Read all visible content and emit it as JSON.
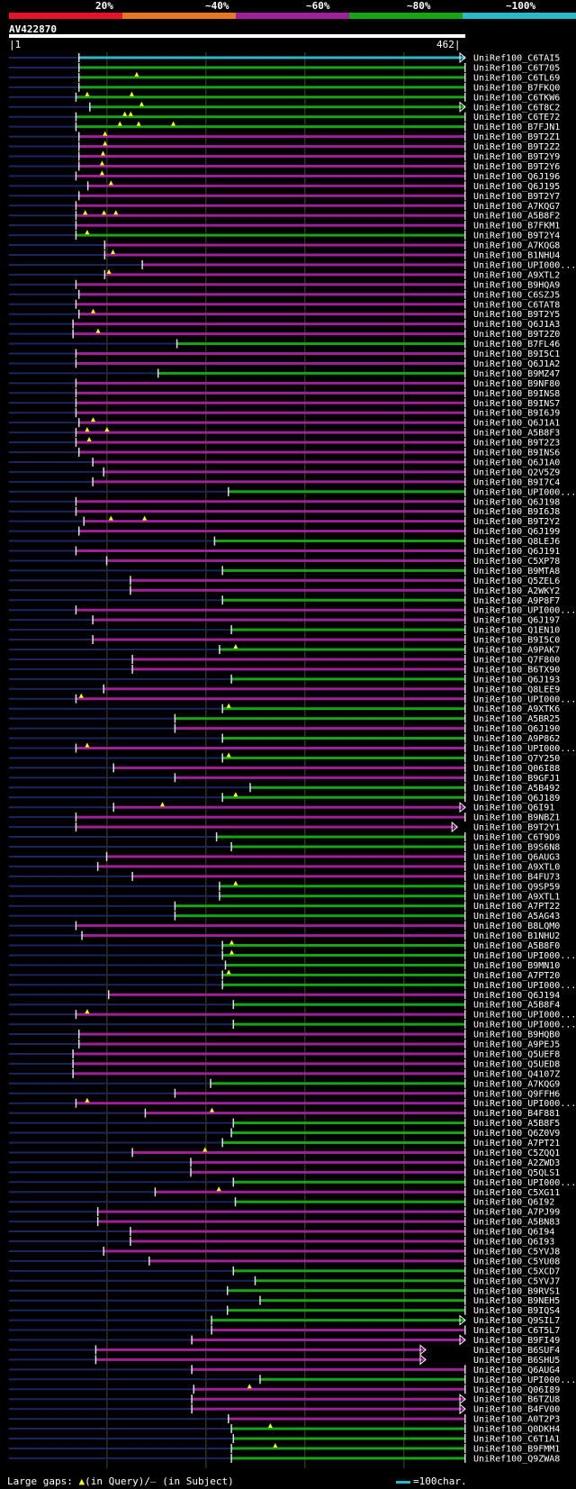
{
  "colors": {
    "red": "#e8122d",
    "orange": "#e87722",
    "purple": "#a0209a",
    "green": "#15a515",
    "cyan": "#29b9c9",
    "navy": "#1a2660",
    "grid": "#4a4a2a",
    "gap": "#ffff00"
  },
  "legend": [
    {
      "label": "20%",
      "color": "#e8122d"
    },
    {
      "label": "~40%",
      "color": "#e87722"
    },
    {
      "label": "~60%",
      "color": "#a0209a"
    },
    {
      "label": "~80%",
      "color": "#15a515"
    },
    {
      "label": "~100%",
      "color": "#29b9c9"
    }
  ],
  "accession": "AV422870",
  "ruler_start": "|1",
  "ruler_end": "462|",
  "query_length": 462,
  "footer": {
    "prefix": "Large gaps: ",
    "q_glyph": "▲",
    "q_text": "(in Query)/",
    "s_glyph": "–",
    "s_text": " (in Subject)",
    "scale_text": "=100char."
  },
  "hits": [
    [
      "UniRef100_C6TAI5",
      71,
      462,
      "c",
      [],
      1
    ],
    [
      "UniRef100_C6T705",
      71,
      462,
      "g",
      [],
      0
    ],
    [
      "UniRef100_C6TL69",
      71,
      462,
      "g",
      [
        130
      ],
      0
    ],
    [
      "UniRef100_B7FKQ0",
      71,
      462,
      "g",
      [],
      0
    ],
    [
      "UniRef100_C6TKW6",
      68,
      462,
      "g",
      [
        80,
        125
      ],
      0
    ],
    [
      "UniRef100_C6T8C2",
      82,
      462,
      "g",
      [
        135
      ],
      1
    ],
    [
      "UniRef100_C6TE72",
      68,
      462,
      "g",
      [
        118,
        124
      ],
      0
    ],
    [
      "UniRef100_B7FJN1",
      68,
      462,
      "g",
      [
        113,
        132,
        167
      ],
      0
    ],
    [
      "UniRef100_B9T2Z1",
      71,
      462,
      "p",
      [
        98
      ],
      0
    ],
    [
      "UniRef100_B9T2Z2",
      71,
      462,
      "p",
      [
        98
      ],
      0
    ],
    [
      "UniRef100_B9T2Y9",
      71,
      462,
      "p",
      [
        96
      ],
      0
    ],
    [
      "UniRef100_B9T2Y6",
      71,
      462,
      "p",
      [
        95
      ],
      0
    ],
    [
      "UniRef100_Q6J196",
      68,
      462,
      "p",
      [
        95
      ],
      0
    ],
    [
      "UniRef100_Q6J195",
      80,
      462,
      "p",
      [
        104
      ],
      0
    ],
    [
      "UniRef100_B9T2Y7",
      71,
      462,
      "p",
      [],
      0
    ],
    [
      "UniRef100_A7KQG7",
      68,
      462,
      "p",
      [],
      0
    ],
    [
      "UniRef100_A5B8F2",
      68,
      462,
      "p",
      [
        78,
        97,
        109
      ],
      0
    ],
    [
      "UniRef100_B7FKM1",
      68,
      462,
      "p",
      [],
      0
    ],
    [
      "UniRef100_B9T2Y4",
      68,
      462,
      "g",
      [
        80
      ],
      0
    ],
    [
      "UniRef100_A7KQG8",
      97,
      462,
      "p",
      [],
      0
    ],
    [
      "UniRef100_B1NHU4",
      97,
      462,
      "p",
      [
        106
      ],
      0
    ],
    [
      "UniRef100_UPI000...",
      135,
      462,
      "p",
      [],
      0
    ],
    [
      "UniRef100_A9XTL2",
      97,
      462,
      "p",
      [
        102
      ],
      0
    ],
    [
      "UniRef100_B9HQA9",
      68,
      462,
      "p",
      [],
      0
    ],
    [
      "UniRef100_C6SZJ5",
      71,
      462,
      "p",
      [],
      0
    ],
    [
      "UniRef100_C6TAT8",
      68,
      462,
      "p",
      [],
      0
    ],
    [
      "UniRef100_B9T2Y5",
      71,
      462,
      "p",
      [
        86
      ],
      0
    ],
    [
      "UniRef100_Q6J1A3",
      65,
      462,
      "p",
      [],
      0
    ],
    [
      "UniRef100_B9T2Z0",
      65,
      462,
      "p",
      [
        91
      ],
      0
    ],
    [
      "UniRef100_B7FL46",
      170,
      462,
      "g",
      [],
      0
    ],
    [
      "UniRef100_B9I5C1",
      68,
      462,
      "p",
      [],
      0
    ],
    [
      "UniRef100_Q6J1A2",
      68,
      462,
      "p",
      [],
      0
    ],
    [
      "UniRef100_B9MZ47",
      151,
      462,
      "g",
      [],
      0
    ],
    [
      "UniRef100_B9NF80",
      68,
      462,
      "p",
      [],
      0
    ],
    [
      "UniRef100_B9INS8",
      68,
      462,
      "p",
      [],
      0
    ],
    [
      "UniRef100_B9INS7",
      68,
      462,
      "p",
      [],
      0
    ],
    [
      "UniRef100_B9I6J9",
      68,
      462,
      "p",
      [],
      0
    ],
    [
      "UniRef100_Q6J1A1",
      71,
      462,
      "p",
      [
        86
      ],
      0
    ],
    [
      "UniRef100_A5B8F3",
      68,
      462,
      "p",
      [
        80,
        100
      ],
      0
    ],
    [
      "UniRef100_B9T2Z3",
      68,
      462,
      "p",
      [
        82
      ],
      0
    ],
    [
      "UniRef100_B9INS6",
      71,
      462,
      "p",
      [],
      0
    ],
    [
      "UniRef100_Q6J1A0",
      85,
      462,
      "p",
      [],
      0
    ],
    [
      "UniRef100_Q2V5Z9",
      96,
      462,
      "p",
      [],
      0
    ],
    [
      "UniRef100_B9I7C4",
      85,
      462,
      "p",
      [],
      0
    ],
    [
      "UniRef100_UPI000...",
      222,
      462,
      "g",
      [],
      0
    ],
    [
      "UniRef100_Q6J198",
      68,
      462,
      "p",
      [],
      0
    ],
    [
      "UniRef100_B9I6J8",
      68,
      462,
      "p",
      [],
      0
    ],
    [
      "UniRef100_B9T2Y2",
      76,
      462,
      "p",
      [
        104,
        138
      ],
      0
    ],
    [
      "UniRef100_Q6J199",
      71,
      462,
      "p",
      [],
      0
    ],
    [
      "UniRef100_Q8LEJ6",
      208,
      462,
      "g",
      [],
      0
    ],
    [
      "UniRef100_Q6J191",
      68,
      462,
      "p",
      [],
      0
    ],
    [
      "UniRef100_C5XP78",
      99,
      462,
      "p",
      [],
      0
    ],
    [
      "UniRef100_B9MTA8",
      216,
      462,
      "g",
      [],
      0
    ],
    [
      "UniRef100_Q5ZEL6",
      123,
      462,
      "p",
      [],
      0
    ],
    [
      "UniRef100_A2WKY2",
      123,
      462,
      "p",
      [],
      0
    ],
    [
      "UniRef100_A9P8F7",
      216,
      462,
      "g",
      [],
      0
    ],
    [
      "UniRef100_UPI000...",
      68,
      462,
      "p",
      [],
      0
    ],
    [
      "UniRef100_Q6J197",
      85,
      462,
      "p",
      [],
      0
    ],
    [
      "UniRef100_Q1EN10",
      225,
      462,
      "g",
      [],
      0
    ],
    [
      "UniRef100_B9I5C0",
      85,
      462,
      "p",
      [],
      0
    ],
    [
      "UniRef100_A9PAK7",
      213,
      462,
      "g",
      [
        230
      ],
      0
    ],
    [
      "UniRef100_Q7F800",
      125,
      462,
      "p",
      [],
      0
    ],
    [
      "UniRef100_B6TX90",
      125,
      462,
      "p",
      [],
      0
    ],
    [
      "UniRef100_Q6J193",
      225,
      462,
      "g",
      [],
      0
    ],
    [
      "UniRef100_Q8LEE9",
      96,
      462,
      "p",
      [],
      0
    ],
    [
      "UniRef100_UPI000...",
      68,
      462,
      "p",
      [
        74
      ],
      0
    ],
    [
      "UniRef100_A9XTK6",
      216,
      462,
      "g",
      [
        223
      ],
      0
    ],
    [
      "UniRef100_A5BR25",
      168,
      462,
      "g",
      [],
      0
    ],
    [
      "UniRef100_Q6J190",
      168,
      462,
      "p",
      [],
      0
    ],
    [
      "UniRef100_A9P862",
      216,
      462,
      "g",
      [],
      0
    ],
    [
      "UniRef100_UPI000...",
      68,
      462,
      "p",
      [
        80
      ],
      0
    ],
    [
      "UniRef100_Q7Y250",
      216,
      462,
      "g",
      [
        223
      ],
      0
    ],
    [
      "UniRef100_Q06I88",
      106,
      462,
      "p",
      [],
      0
    ],
    [
      "UniRef100_B9GFJ1",
      168,
      462,
      "p",
      [],
      0
    ],
    [
      "UniRef100_A5B492",
      244,
      462,
      "g",
      [],
      0
    ],
    [
      "UniRef100_Q6J189",
      216,
      462,
      "g",
      [
        230
      ],
      0
    ],
    [
      "UniRef100_Q6I91",
      106,
      462,
      "p",
      [
        156
      ],
      1
    ],
    [
      "UniRef100_B9NBZ1",
      68,
      462,
      "p",
      [],
      0
    ],
    [
      "UniRef100_B9T2Y1",
      68,
      454,
      "p",
      [],
      1
    ],
    [
      "UniRef100_C6T9D9",
      210,
      462,
      "g",
      [],
      0
    ],
    [
      "UniRef100_B9S6N8",
      225,
      462,
      "g",
      [],
      0
    ],
    [
      "UniRef100_Q6AUG3",
      99,
      462,
      "p",
      [],
      0
    ],
    [
      "UniRef100_A9XTL0",
      90,
      462,
      "p",
      [],
      0
    ],
    [
      "UniRef100_B4FU73",
      125,
      462,
      "p",
      [],
      0
    ],
    [
      "UniRef100_Q9SP59",
      213,
      462,
      "g",
      [
        230
      ],
      0
    ],
    [
      "UniRef100_A9XTL1",
      213,
      462,
      "g",
      [],
      0
    ],
    [
      "UniRef100_A7PT22",
      168,
      462,
      "g",
      [],
      0
    ],
    [
      "UniRef100_A5AG43",
      168,
      462,
      "g",
      [],
      0
    ],
    [
      "UniRef100_B8LQM0",
      68,
      462,
      "p",
      [],
      0
    ],
    [
      "UniRef100_B1NHU2",
      74,
      462,
      "p",
      [],
      0
    ],
    [
      "UniRef100_A5B8F0",
      216,
      462,
      "g",
      [
        226
      ],
      0
    ],
    [
      "UniRef100_UPI000...",
      216,
      462,
      "g",
      [
        226
      ],
      0
    ],
    [
      "UniRef100_B9MN10",
      219,
      462,
      "g",
      [],
      0
    ],
    [
      "UniRef100_A7PT20",
      216,
      462,
      "g",
      [
        223
      ],
      0
    ],
    [
      "UniRef100_UPI000...",
      216,
      462,
      "g",
      [],
      0
    ],
    [
      "UniRef100_Q6J194",
      101,
      462,
      "p",
      [],
      0
    ],
    [
      "UniRef100_A5B8F4",
      227,
      462,
      "g",
      [],
      0
    ],
    [
      "UniRef100_UPI000...",
      68,
      462,
      "p",
      [
        80
      ],
      0
    ],
    [
      "UniRef100_UPI000...",
      227,
      462,
      "g",
      [],
      0
    ],
    [
      "UniRef100_B9HQB0",
      71,
      462,
      "p",
      [],
      0
    ],
    [
      "UniRef100_A9PEJ5",
      71,
      462,
      "p",
      [],
      0
    ],
    [
      "UniRef100_Q5UEF8",
      65,
      462,
      "p",
      [],
      0
    ],
    [
      "UniRef100_Q5UED8",
      65,
      462,
      "p",
      [],
      0
    ],
    [
      "UniRef100_Q4107Z",
      65,
      462,
      "p",
      [],
      0
    ],
    [
      "UniRef100_A7KQG9",
      204,
      462,
      "g",
      [],
      0
    ],
    [
      "UniRef100_Q9FFH6",
      168,
      462,
      "p",
      [],
      0
    ],
    [
      "UniRef100_UPI000...",
      68,
      462,
      "p",
      [
        80
      ],
      0
    ],
    [
      "UniRef100_B4F881",
      138,
      462,
      "p",
      [
        206
      ],
      0
    ],
    [
      "UniRef100_A5B8F5",
      227,
      462,
      "g",
      [],
      0
    ],
    [
      "UniRef100_Q6Z0V9",
      225,
      462,
      "g",
      [],
      0
    ],
    [
      "UniRef100_A7PT21",
      216,
      462,
      "g",
      [],
      0
    ],
    [
      "UniRef100_C5ZQQ1",
      125,
      462,
      "p",
      [
        199
      ],
      0
    ],
    [
      "UniRef100_A2ZWD3",
      184,
      462,
      "p",
      [],
      0
    ],
    [
      "UniRef100_Q5QLS1",
      184,
      462,
      "p",
      [],
      0
    ],
    [
      "UniRef100_UPI000...",
      227,
      462,
      "g",
      [],
      0
    ],
    [
      "UniRef100_C5XG11",
      148,
      462,
      "p",
      [
        213
      ],
      0
    ],
    [
      "UniRef100_Q6I92",
      229,
      462,
      "g",
      [],
      0
    ],
    [
      "UniRef100_A7PJ99",
      90,
      462,
      "p",
      [],
      0
    ],
    [
      "UniRef100_A5BN83",
      90,
      462,
      "p",
      [],
      0
    ],
    [
      "UniRef100_Q6I94",
      123,
      462,
      "p",
      [],
      0
    ],
    [
      "UniRef100_Q6I93",
      123,
      462,
      "p",
      [],
      0
    ],
    [
      "UniRef100_C5YVJ8",
      96,
      462,
      "p",
      [],
      0
    ],
    [
      "UniRef100_C5YU08",
      142,
      462,
      "p",
      [],
      0
    ],
    [
      "UniRef100_C5XCD7",
      227,
      462,
      "g",
      [],
      0
    ],
    [
      "UniRef100_C5YVJ7",
      249,
      462,
      "g",
      [],
      0
    ],
    [
      "UniRef100_B9RVS1",
      221,
      462,
      "g",
      [],
      0
    ],
    [
      "UniRef100_B9NEH5",
      254,
      462,
      "g",
      [],
      0
    ],
    [
      "UniRef100_B9IQS4",
      221,
      462,
      "g",
      [],
      0
    ],
    [
      "UniRef100_Q9SIL7",
      205,
      462,
      "g",
      [],
      1
    ],
    [
      "UniRef100_C6T5L7",
      205,
      462,
      "p",
      [],
      0
    ],
    [
      "UniRef100_B9FI49",
      185,
      462,
      "p",
      [],
      1
    ],
    [
      "UniRef100_B6SUF4",
      88,
      422,
      "p",
      [],
      1
    ],
    [
      "UniRef100_B6SHU5",
      88,
      422,
      "p",
      [],
      1
    ],
    [
      "UniRef100_Q6AUG4",
      185,
      462,
      "p",
      [],
      0
    ],
    [
      "UniRef100_UPI000...",
      254,
      462,
      "g",
      [],
      0
    ],
    [
      "UniRef100_Q06I89",
      187,
      462,
      "p",
      [
        244
      ],
      0
    ],
    [
      "UniRef100_B6TZU8",
      185,
      462,
      "p",
      [],
      1
    ],
    [
      "UniRef100_B4FV00",
      185,
      462,
      "p",
      [],
      1
    ],
    [
      "UniRef100_A0T2P3",
      222,
      462,
      "p",
      [],
      0
    ],
    [
      "UniRef100_Q0DKH4",
      225,
      462,
      "g",
      [
        265
      ],
      0
    ],
    [
      "UniRef100_C6T1A1",
      227,
      462,
      "g",
      [],
      0
    ],
    [
      "UniRef100_B9FMM1",
      225,
      462,
      "g",
      [
        270
      ],
      0
    ],
    [
      "UniRef100_Q9ZWA8",
      225,
      462,
      "g",
      [],
      0
    ]
  ]
}
